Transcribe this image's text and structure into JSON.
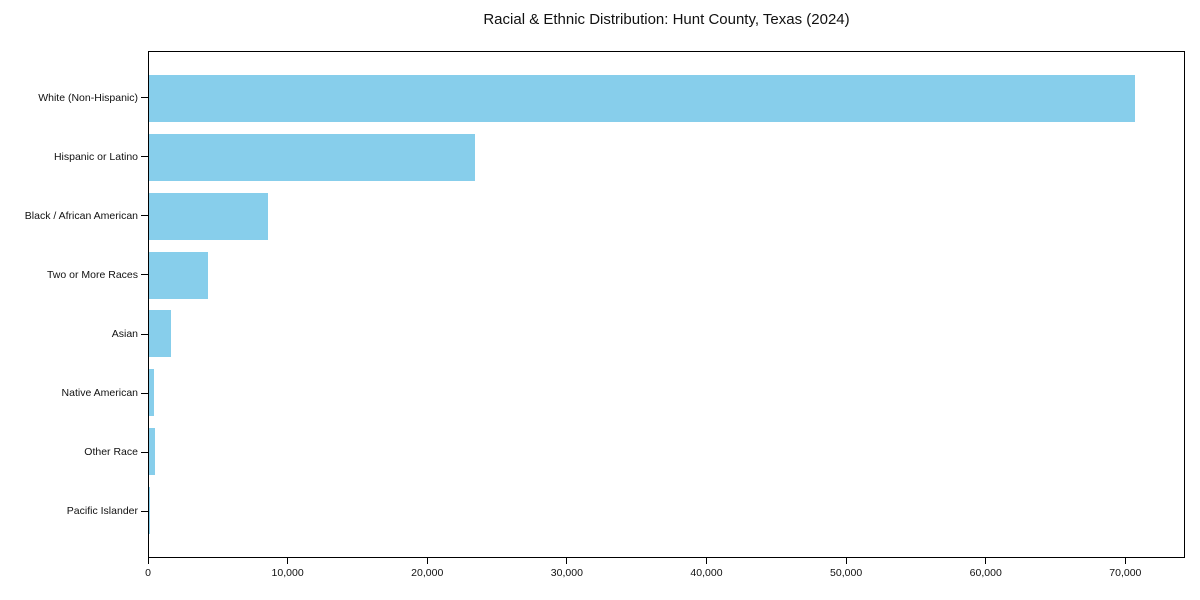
{
  "chart_data": {
    "type": "bar",
    "orientation": "horizontal",
    "title": "Racial & Ethnic Distribution: Hunt County, Texas (2024)",
    "categories": [
      "White (Non-Hispanic)",
      "Hispanic or Latino",
      "Black / African American",
      "Two or More Races",
      "Asian",
      "Native American",
      "Other Race",
      "Pacific Islander"
    ],
    "values": [
      70700,
      23400,
      8500,
      4200,
      1550,
      350,
      400,
      40
    ],
    "xlabel": "",
    "ylabel": "",
    "xlim": [
      0,
      74200
    ],
    "x_ticks": [
      0,
      10000,
      20000,
      30000,
      40000,
      50000,
      60000,
      70000
    ],
    "x_tick_labels": [
      "0",
      "10,000",
      "20,000",
      "30,000",
      "40,000",
      "50,000",
      "60,000",
      "70,000"
    ],
    "bar_color": "#87CEEB",
    "grid": false,
    "legend": null
  }
}
